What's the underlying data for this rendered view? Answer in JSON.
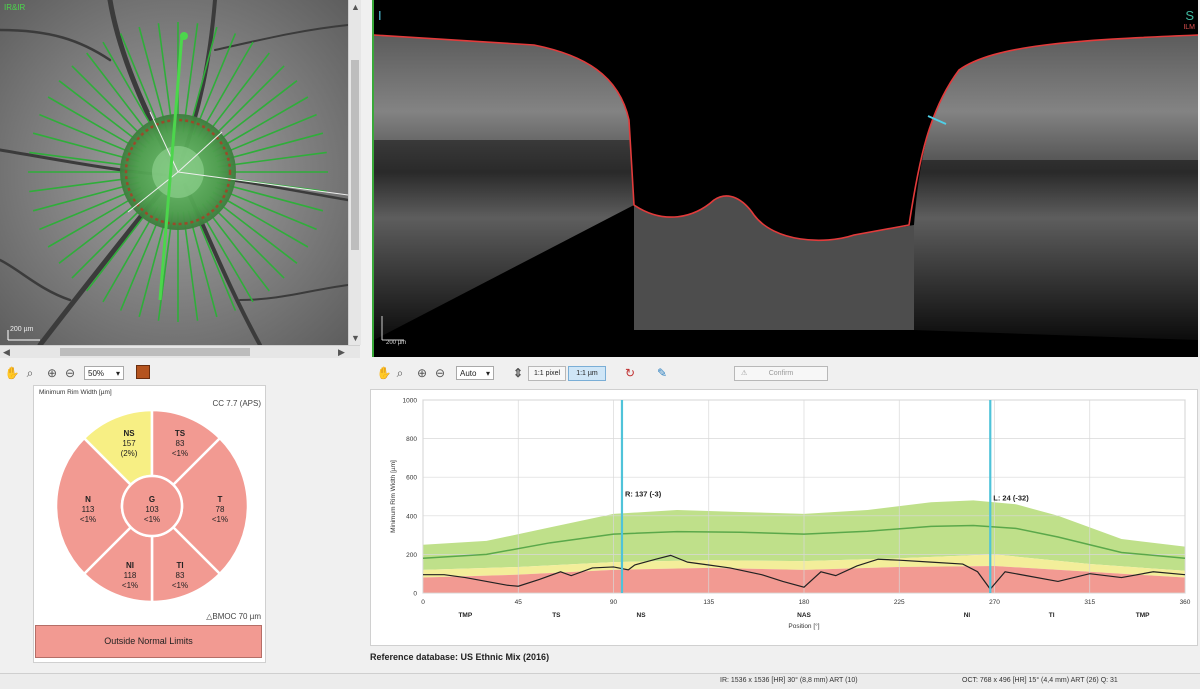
{
  "fundus": {
    "top_label": "IR&IR",
    "scale_label": "200 µm",
    "bottom_right_text": "",
    "ray_label": "",
    "toolbar": {
      "zoom_value": "50%"
    }
  },
  "oct": {
    "left_label": "I",
    "right_label": "S",
    "ilm_label": "ILM",
    "scale_label": "200 µm",
    "toolbar": {
      "zoom_value": "Auto",
      "pixel_btn": "1:1 pixel",
      "micron_btn": "1:1 µm",
      "confirm_btn": "Confirm"
    }
  },
  "sector_panel": {
    "title": "Minimum Rim Width [µm]",
    "cc": "CC 7.7 (APS)",
    "bmo_label": "△BMOC 70 µm",
    "classification": "Outside Normal Limits",
    "sectors": {
      "NS": {
        "name": "NS",
        "value": "157",
        "pct": "(2%)"
      },
      "TS": {
        "name": "TS",
        "value": "83",
        "pct": "<1%"
      },
      "N": {
        "name": "N",
        "value": "113",
        "pct": "<1%"
      },
      "G": {
        "name": "G",
        "value": "103",
        "pct": "<1%"
      },
      "T": {
        "name": "T",
        "value": "78",
        "pct": "<1%"
      },
      "NI": {
        "name": "NI",
        "value": "118",
        "pct": "<1%"
      },
      "TI": {
        "name": "TI",
        "value": "83",
        "pct": "<1%"
      }
    },
    "colors": {
      "outside": "#f29a92",
      "borderline": "#f7ef84",
      "within": "#a8d46f"
    }
  },
  "chart_data": {
    "type": "line",
    "ylabel": "Minimum Rim Width [µm]",
    "xlabel": "Position [°]",
    "xlim": [
      0,
      360
    ],
    "ylim": [
      0,
      1000
    ],
    "xticks": [
      0,
      45,
      90,
      135,
      180,
      225,
      270,
      315,
      360
    ],
    "yticks": [
      0,
      200,
      400,
      600,
      800,
      1000
    ],
    "sector_labels": [
      {
        "x": 20,
        "label": "TMP"
      },
      {
        "x": 63,
        "label": "TS"
      },
      {
        "x": 103,
        "label": "NS"
      },
      {
        "x": 180,
        "label": "NAS"
      },
      {
        "x": 257,
        "label": "NI"
      },
      {
        "x": 297,
        "label": "TI"
      },
      {
        "x": 340,
        "label": "TMP"
      }
    ],
    "normal_band_upper": {
      "x": [
        0,
        30,
        60,
        90,
        120,
        150,
        180,
        210,
        240,
        260,
        280,
        300,
        330,
        360
      ],
      "y": [
        250,
        270,
        340,
        410,
        430,
        420,
        410,
        430,
        470,
        480,
        460,
        400,
        280,
        240
      ]
    },
    "mean_line": {
      "x": [
        0,
        30,
        60,
        90,
        120,
        150,
        180,
        210,
        240,
        260,
        280,
        300,
        330,
        360
      ],
      "y": [
        180,
        200,
        260,
        305,
        318,
        315,
        305,
        320,
        345,
        350,
        335,
        290,
        210,
        180
      ]
    },
    "borderline_upper": {
      "x": [
        0,
        45,
        90,
        135,
        180,
        225,
        270,
        315,
        360
      ],
      "y": [
        120,
        135,
        160,
        170,
        165,
        180,
        200,
        150,
        115
      ]
    },
    "outside_upper": {
      "x": [
        0,
        45,
        90,
        135,
        180,
        225,
        270,
        315,
        360
      ],
      "y": [
        80,
        95,
        120,
        130,
        120,
        135,
        140,
        110,
        80
      ]
    },
    "series": [
      {
        "x": [
          0,
          10,
          20,
          30,
          40,
          45,
          55,
          65,
          70,
          80,
          90,
          97,
          100,
          110,
          117,
          125,
          135,
          145,
          160,
          170,
          180,
          188,
          195,
          205,
          215,
          225,
          240,
          255,
          262,
          268,
          275,
          285,
          300,
          315,
          330,
          345,
          360
        ],
        "y": [
          95,
          95,
          80,
          60,
          40,
          35,
          70,
          110,
          90,
          130,
          135,
          120,
          145,
          175,
          195,
          160,
          145,
          130,
          95,
          60,
          30,
          110,
          90,
          140,
          175,
          170,
          160,
          150,
          110,
          20,
          110,
          90,
          60,
          100,
          80,
          110,
          95
        ]
      }
    ],
    "cursors": [
      {
        "x": 94,
        "label": "R: 137 (-3)"
      },
      {
        "x": 268,
        "label": "L: 24 (-32)"
      }
    ]
  },
  "reference_db": "Reference database: US Ethnic Mix (2016)",
  "status": {
    "ir": "IR: 1536 x 1536 [HR] 30° (8,8 mm) ART (10)",
    "oct": "OCT: 768 x 496 [HR] 15° (4,4 mm) ART (26) Q: 31"
  }
}
